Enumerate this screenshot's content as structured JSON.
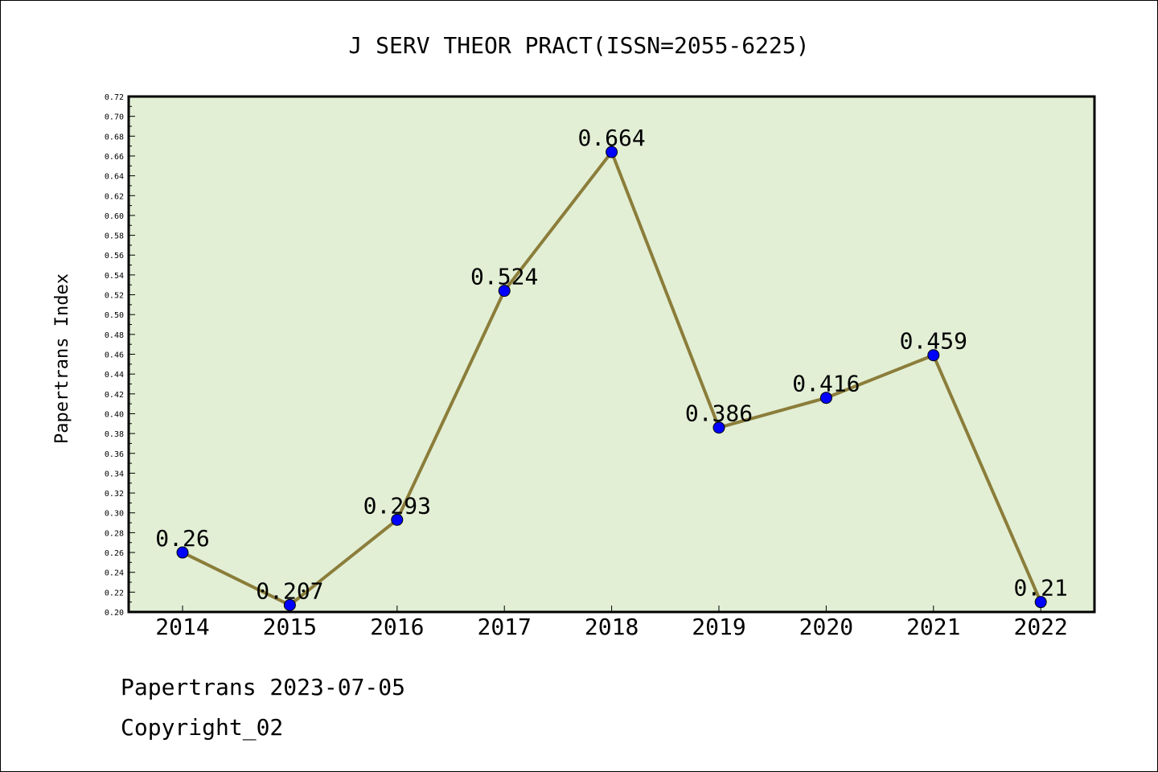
{
  "chart_data": {
    "type": "line",
    "title": "J SERV THEOR PRACT(ISSN=2055-6225)",
    "xlabel": "",
    "ylabel": "Papertrans Index",
    "categories": [
      "2014",
      "2015",
      "2016",
      "2017",
      "2018",
      "2019",
      "2020",
      "2021",
      "2022"
    ],
    "values": [
      0.26,
      0.207,
      0.293,
      0.524,
      0.664,
      0.386,
      0.416,
      0.459,
      0.21
    ],
    "data_labels": [
      "0.26",
      "0.207",
      "0.293",
      "0.524",
      "0.664",
      "0.386",
      "0.416",
      "0.459",
      "0.21"
    ],
    "ylim": [
      0.2,
      0.72
    ],
    "ytick_step": 0.02,
    "grid": false,
    "colors": {
      "line": "#8b7d3a",
      "marker": "#0000ff",
      "plot_bg": "#e2efd5"
    }
  },
  "footer": {
    "line1": "Papertrans 2023-07-05",
    "line2": "Copyright_02"
  }
}
